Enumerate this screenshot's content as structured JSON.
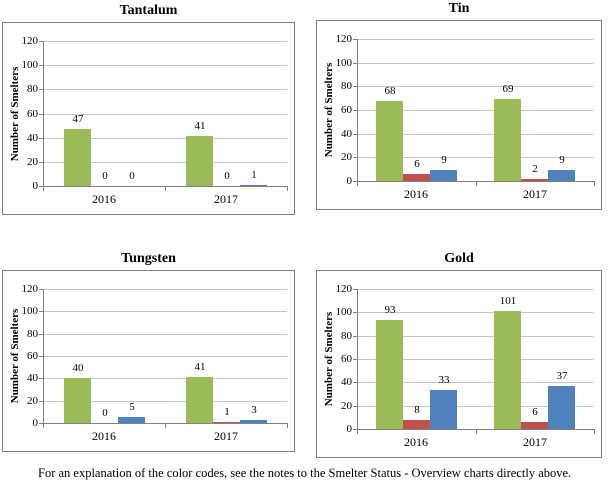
{
  "caption": "For an explanation of the color codes, see the notes to the Smelter Status - Overview charts directly above.",
  "colors": {
    "bar_green": "#9BBB59",
    "bar_red": "#C0504D",
    "bar_blue": "#4F81BD",
    "gridline": "#C6C6C6",
    "axis": "#808080",
    "panel_border": "#808080"
  },
  "chart_data": [
    {
      "type": "bar",
      "title": "Tantalum",
      "ylabel": "Number of Smelters",
      "categories": [
        "2016",
        "2017"
      ],
      "series": [
        {
          "name": "green",
          "color": "#9BBB59",
          "values": [
            47,
            41
          ]
        },
        {
          "name": "red",
          "color": "#C0504D",
          "values": [
            0,
            0
          ]
        },
        {
          "name": "blue",
          "color": "#4F81BD",
          "values": [
            0,
            1
          ]
        }
      ],
      "ylim": [
        0,
        120
      ],
      "ytick_step": 20,
      "grid": true,
      "legend": "none",
      "value_labels": true
    },
    {
      "type": "bar",
      "title": "Tin",
      "ylabel": "Number of Smelters",
      "categories": [
        "2016",
        "2017"
      ],
      "series": [
        {
          "name": "green",
          "color": "#9BBB59",
          "values": [
            68,
            69
          ]
        },
        {
          "name": "red",
          "color": "#C0504D",
          "values": [
            6,
            2
          ]
        },
        {
          "name": "blue",
          "color": "#4F81BD",
          "values": [
            9,
            9
          ]
        }
      ],
      "ylim": [
        0,
        120
      ],
      "ytick_step": 20,
      "grid": true,
      "legend": "none",
      "value_labels": true
    },
    {
      "type": "bar",
      "title": "Tungsten",
      "ylabel": "Number of Smelters",
      "categories": [
        "2016",
        "2017"
      ],
      "series": [
        {
          "name": "green",
          "color": "#9BBB59",
          "values": [
            40,
            41
          ]
        },
        {
          "name": "red",
          "color": "#C0504D",
          "values": [
            0,
            1
          ]
        },
        {
          "name": "blue",
          "color": "#4F81BD",
          "values": [
            5,
            3
          ]
        }
      ],
      "ylim": [
        0,
        120
      ],
      "ytick_step": 20,
      "grid": true,
      "legend": "none",
      "value_labels": true
    },
    {
      "type": "bar",
      "title": "Gold",
      "ylabel": "Number of Smelters",
      "categories": [
        "2016",
        "2017"
      ],
      "series": [
        {
          "name": "green",
          "color": "#9BBB59",
          "values": [
            93,
            101
          ]
        },
        {
          "name": "red",
          "color": "#C0504D",
          "values": [
            8,
            6
          ]
        },
        {
          "name": "blue",
          "color": "#4F81BD",
          "values": [
            33,
            37
          ]
        }
      ],
      "ylim": [
        0,
        120
      ],
      "ytick_step": 20,
      "grid": true,
      "legend": "none",
      "value_labels": true
    }
  ]
}
